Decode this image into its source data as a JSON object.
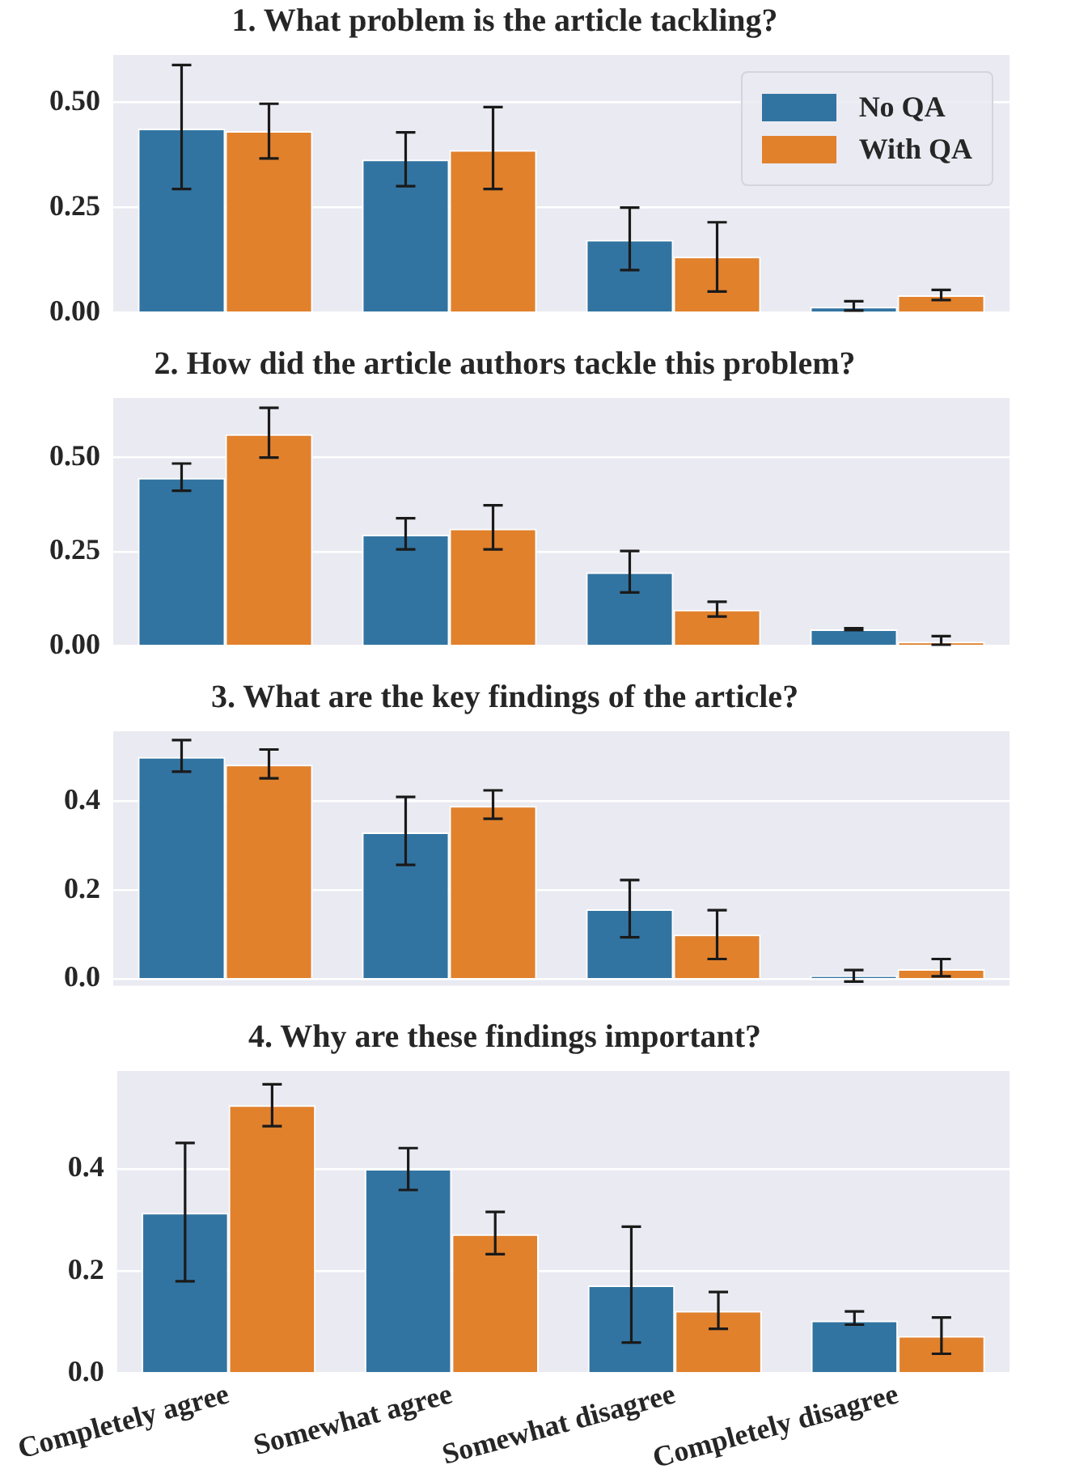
{
  "chart_data": [
    {
      "type": "bar",
      "title": "1. What problem is the article tackling?",
      "categories": [
        null,
        null,
        null,
        null
      ],
      "series": [
        {
          "name": "No QA",
          "color": "#3274a1",
          "values": [
            0.438,
            0.364,
            0.173,
            0.014
          ],
          "errors": [
            [
              0.294,
              0.589
            ],
            [
              0.301,
              0.429
            ],
            [
              0.101,
              0.25
            ],
            [
              0.005,
              0.027
            ]
          ]
        },
        {
          "name": "With QA",
          "color": "#e1812c",
          "values": [
            0.432,
            0.387,
            0.133,
            0.041
          ],
          "errors": [
            [
              0.367,
              0.497
            ],
            [
              0.294,
              0.489
            ],
            [
              0.05,
              0.215
            ],
            [
              0.03,
              0.054
            ]
          ]
        }
      ],
      "ylim": [
        0,
        0.613
      ],
      "yticks": [
        {
          "value": 0,
          "label": "0.00"
        },
        {
          "value": 0.25,
          "label": "0.25"
        },
        {
          "value": 0.5,
          "label": "0.50"
        }
      ],
      "grid": "y",
      "legend": "top right",
      "tick_labels": "y"
    },
    {
      "type": "bar",
      "title": "2. How did the article authors tackle this problem?",
      "categories": [
        null,
        null,
        null,
        null
      ],
      "series": [
        {
          "color": "#3274a1",
          "values": [
            0.446,
            0.295,
            0.195,
            0.044
          ],
          "errors": [
            [
              0.412,
              0.484
            ],
            [
              0.256,
              0.339
            ],
            [
              0.142,
              0.252
            ],
            [
              0.042,
              0.047
            ]
          ]
        },
        {
          "color": "#e1812c",
          "values": [
            0.562,
            0.311,
            0.096,
            0.011
          ],
          "errors": [
            [
              0.5,
              0.632
            ],
            [
              0.256,
              0.373
            ],
            [
              0.078,
              0.117
            ],
            [
              0.003,
              0.026
            ]
          ]
        }
      ],
      "ylim": [
        0,
        0.658
      ],
      "yticks": [
        {
          "value": 0,
          "label": "0.00"
        },
        {
          "value": 0.25,
          "label": "0.25"
        },
        {
          "value": 0.5,
          "label": "0.50"
        }
      ],
      "grid": "y",
      "tick_labels": "y"
    },
    {
      "type": "bar",
      "title": "3. What are the key findings of the article?",
      "categories": [
        null,
        null,
        null,
        null
      ],
      "series": [
        {
          "color": "#3274a1",
          "values": [
            0.5,
            0.33,
            0.157,
            0.007
          ],
          "errors": [
            [
              0.467,
              0.538
            ],
            [
              0.257,
              0.41
            ],
            [
              0.094,
              0.223
            ],
            [
              -0.006,
              0.02
            ]
          ]
        },
        {
          "color": "#e1812c",
          "values": [
            0.483,
            0.39,
            0.1,
            0.022
          ],
          "errors": [
            [
              0.452,
              0.517
            ],
            [
              0.361,
              0.425
            ],
            [
              0.045,
              0.155
            ],
            [
              0.006,
              0.045
            ]
          ]
        }
      ],
      "ylim": [
        -0.015,
        0.558
      ],
      "yticks": [
        {
          "value": 0,
          "label": "0.0"
        },
        {
          "value": 0.2,
          "label": "0.2"
        },
        {
          "value": 0.4,
          "label": "0.4"
        }
      ],
      "grid": "y",
      "tick_labels": "y"
    },
    {
      "type": "bar",
      "title": "4. Why are these findings important?",
      "categories": [
        "Completely agree",
        "Somewhat agree",
        "Somewhat disagree",
        "Completely disagree"
      ],
      "series": [
        {
          "color": "#3274a1",
          "values": [
            0.314,
            0.4,
            0.172,
            0.103
          ],
          "errors": [
            [
              0.18,
              0.451
            ],
            [
              0.359,
              0.441
            ],
            [
              0.06,
              0.287
            ],
            [
              0.095,
              0.121
            ]
          ]
        },
        {
          "color": "#e1812c",
          "values": [
            0.525,
            0.272,
            0.122,
            0.073
          ],
          "errors": [
            [
              0.484,
              0.566
            ],
            [
              0.233,
              0.316
            ],
            [
              0.087,
              0.159
            ],
            [
              0.038,
              0.109
            ]
          ]
        }
      ],
      "ylim": [
        0,
        0.592
      ],
      "yticks": [
        {
          "value": 0,
          "label": "0.0"
        },
        {
          "value": 0.2,
          "label": "0.2"
        },
        {
          "value": 0.4,
          "label": "0.4"
        }
      ],
      "grid": "y"
    }
  ]
}
